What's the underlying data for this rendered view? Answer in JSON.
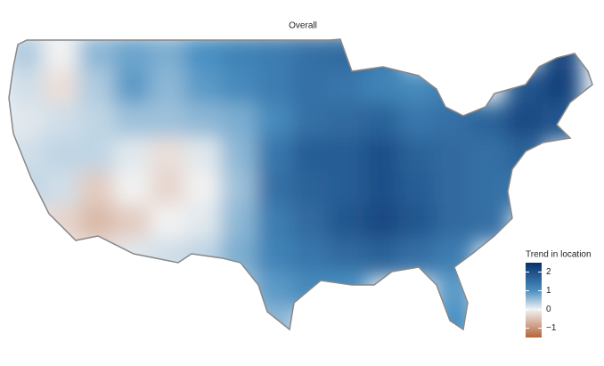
{
  "chart_data": {
    "type": "heatmap-map",
    "title": "Overall",
    "legend_title": "Trend in location",
    "clim": [
      -1.5,
      2.5
    ],
    "cticks": [
      2,
      1,
      0,
      {
        "value": -1,
        "label": "−1"
      }
    ],
    "colorscale": [
      {
        "value": -1.5,
        "color": "#b5653a"
      },
      {
        "value": 0,
        "color": "#f2f2f2"
      },
      {
        "value": 1,
        "color": "#4a90c2"
      },
      {
        "value": 2.5,
        "color": "#08306b"
      }
    ],
    "z": [
      [
        0.4,
        0,
        0.6,
        0.8,
        0.7,
        1.0,
        1.2,
        1.3,
        1.5,
        1.6,
        1.3,
        null,
        null,
        null,
        null,
        2.1
      ],
      [
        0.2,
        -0.2,
        0.4,
        0.9,
        0.6,
        0.9,
        1.1,
        1.3,
        1.5,
        1.4,
        1.2,
        1.1,
        1.3,
        null,
        1.9,
        2.2
      ],
      [
        0.1,
        0.2,
        0.3,
        0.5,
        0.5,
        0.6,
        0.7,
        1.1,
        1.5,
        1.6,
        1.7,
        1.4,
        1.5,
        1.7,
        2.1,
        1.9
      ],
      [
        0.2,
        0.3,
        0.3,
        0.1,
        -0.2,
        0.1,
        0.6,
        1.4,
        1.8,
        1.8,
        2.0,
        1.7,
        1.6,
        1.5,
        1.7,
        null
      ],
      [
        0.3,
        0.2,
        -0.4,
        0.0,
        -0.3,
        0.0,
        0.5,
        1.5,
        1.7,
        1.8,
        2.0,
        1.8,
        1.6,
        1.5,
        1.4,
        null
      ],
      [
        null,
        -0.3,
        -0.6,
        -0.4,
        0.0,
        0.1,
        0.6,
        1.3,
        1.6,
        1.9,
        2.1,
        1.9,
        1.6,
        1.5,
        null,
        null
      ],
      [
        null,
        null,
        -0.2,
        0.1,
        0.2,
        0.3,
        0.7,
        1.2,
        1.4,
        1.6,
        1.7,
        1.5,
        1.3,
        null,
        null,
        null
      ],
      [
        null,
        null,
        null,
        null,
        null,
        0.3,
        0.5,
        0.9,
        1.1,
        1.0,
        null,
        null,
        0.9,
        null,
        null,
        null
      ],
      [
        null,
        null,
        null,
        null,
        null,
        null,
        null,
        0.6,
        null,
        null,
        null,
        null,
        1.0,
        null,
        null,
        null
      ]
    ]
  }
}
